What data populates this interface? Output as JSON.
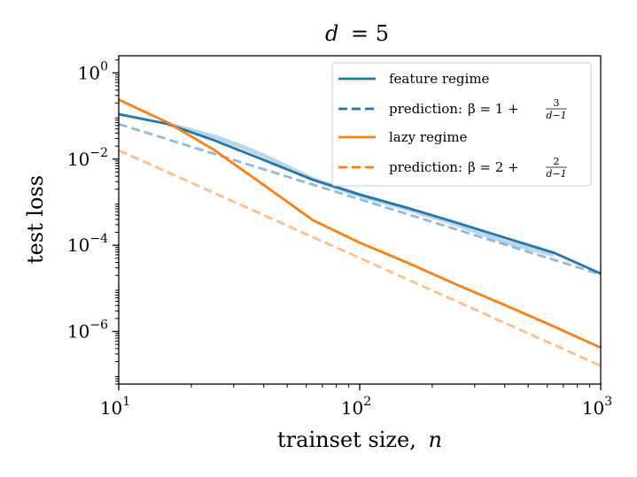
{
  "chart_data": {
    "type": "line",
    "title": "d = 5",
    "title_var": "d",
    "title_eq": "= 5",
    "xlabel": "trainset size,",
    "xlabel_var": "n",
    "ylabel": "test loss",
    "xscale": "log",
    "yscale": "log",
    "xlim": [
      10,
      1000
    ],
    "ylim": [
      6e-08,
      2.5
    ],
    "x_ticks": [
      {
        "value": 10,
        "base": "10",
        "exp": "1"
      },
      {
        "value": 100,
        "base": "10",
        "exp": "2"
      },
      {
        "value": 1000,
        "base": "10",
        "exp": "3"
      }
    ],
    "y_ticks": [
      {
        "value": 1,
        "base": "10",
        "exp": "0"
      },
      {
        "value": 0.01,
        "base": "10",
        "exp": "−2"
      },
      {
        "value": 0.0001,
        "base": "10",
        "exp": "−4"
      },
      {
        "value": 1e-06,
        "base": "10",
        "exp": "−6"
      }
    ],
    "legend_position": "top-right",
    "series": [
      {
        "name": "feature regime",
        "color": "#1f77b4",
        "style": "solid",
        "x": [
          10,
          16,
          25,
          40,
          64,
          100,
          160,
          250,
          400,
          640,
          1000
        ],
        "y": [
          0.11,
          0.065,
          0.027,
          0.0095,
          0.0033,
          0.0015,
          0.00072,
          0.00034,
          0.00015,
          6.7e-05,
          2.2e-05
        ]
      },
      {
        "name": "feature regime (spread)",
        "color": "#1f77b4",
        "style": "band",
        "x": [
          16,
          25,
          32,
          40,
          64,
          100,
          160,
          250,
          400,
          640
        ],
        "y": [
          0.065,
          0.033,
          0.02,
          0.012,
          0.0034,
          0.00145,
          0.00068,
          0.00031,
          0.00012,
          6e-05
        ],
        "in_legend": false
      },
      {
        "name": "prediction: β = 1 + 3/(d−1)",
        "legend_text": "prediction:",
        "legend_math": "β = 1 +",
        "legend_num": "3",
        "legend_den": "d−1",
        "color": "#1f77b4",
        "style": "dashed",
        "x": [
          10,
          1000
        ],
        "y": [
          0.065,
          2.1e-05
        ]
      },
      {
        "name": "lazy regime",
        "color": "#ff7f0e",
        "style": "solid",
        "x": [
          10,
          16,
          25,
          40,
          64,
          100,
          160,
          250,
          400,
          640,
          1000
        ],
        "y": [
          0.24,
          0.07,
          0.016,
          0.0025,
          0.00038,
          0.000115,
          3.8e-05,
          1.25e-05,
          4.1e-06,
          1.3e-06,
          4.2e-07
        ]
      },
      {
        "name": "prediction: β = 2 + 2/(d−1)",
        "legend_text": "prediction:",
        "legend_math": "β = 2 +",
        "legend_num": "2",
        "legend_den": "d−1",
        "color": "#ff7f0e",
        "style": "dashed",
        "x": [
          10,
          1000
        ],
        "y": [
          0.016,
          1.6e-07
        ]
      }
    ]
  }
}
